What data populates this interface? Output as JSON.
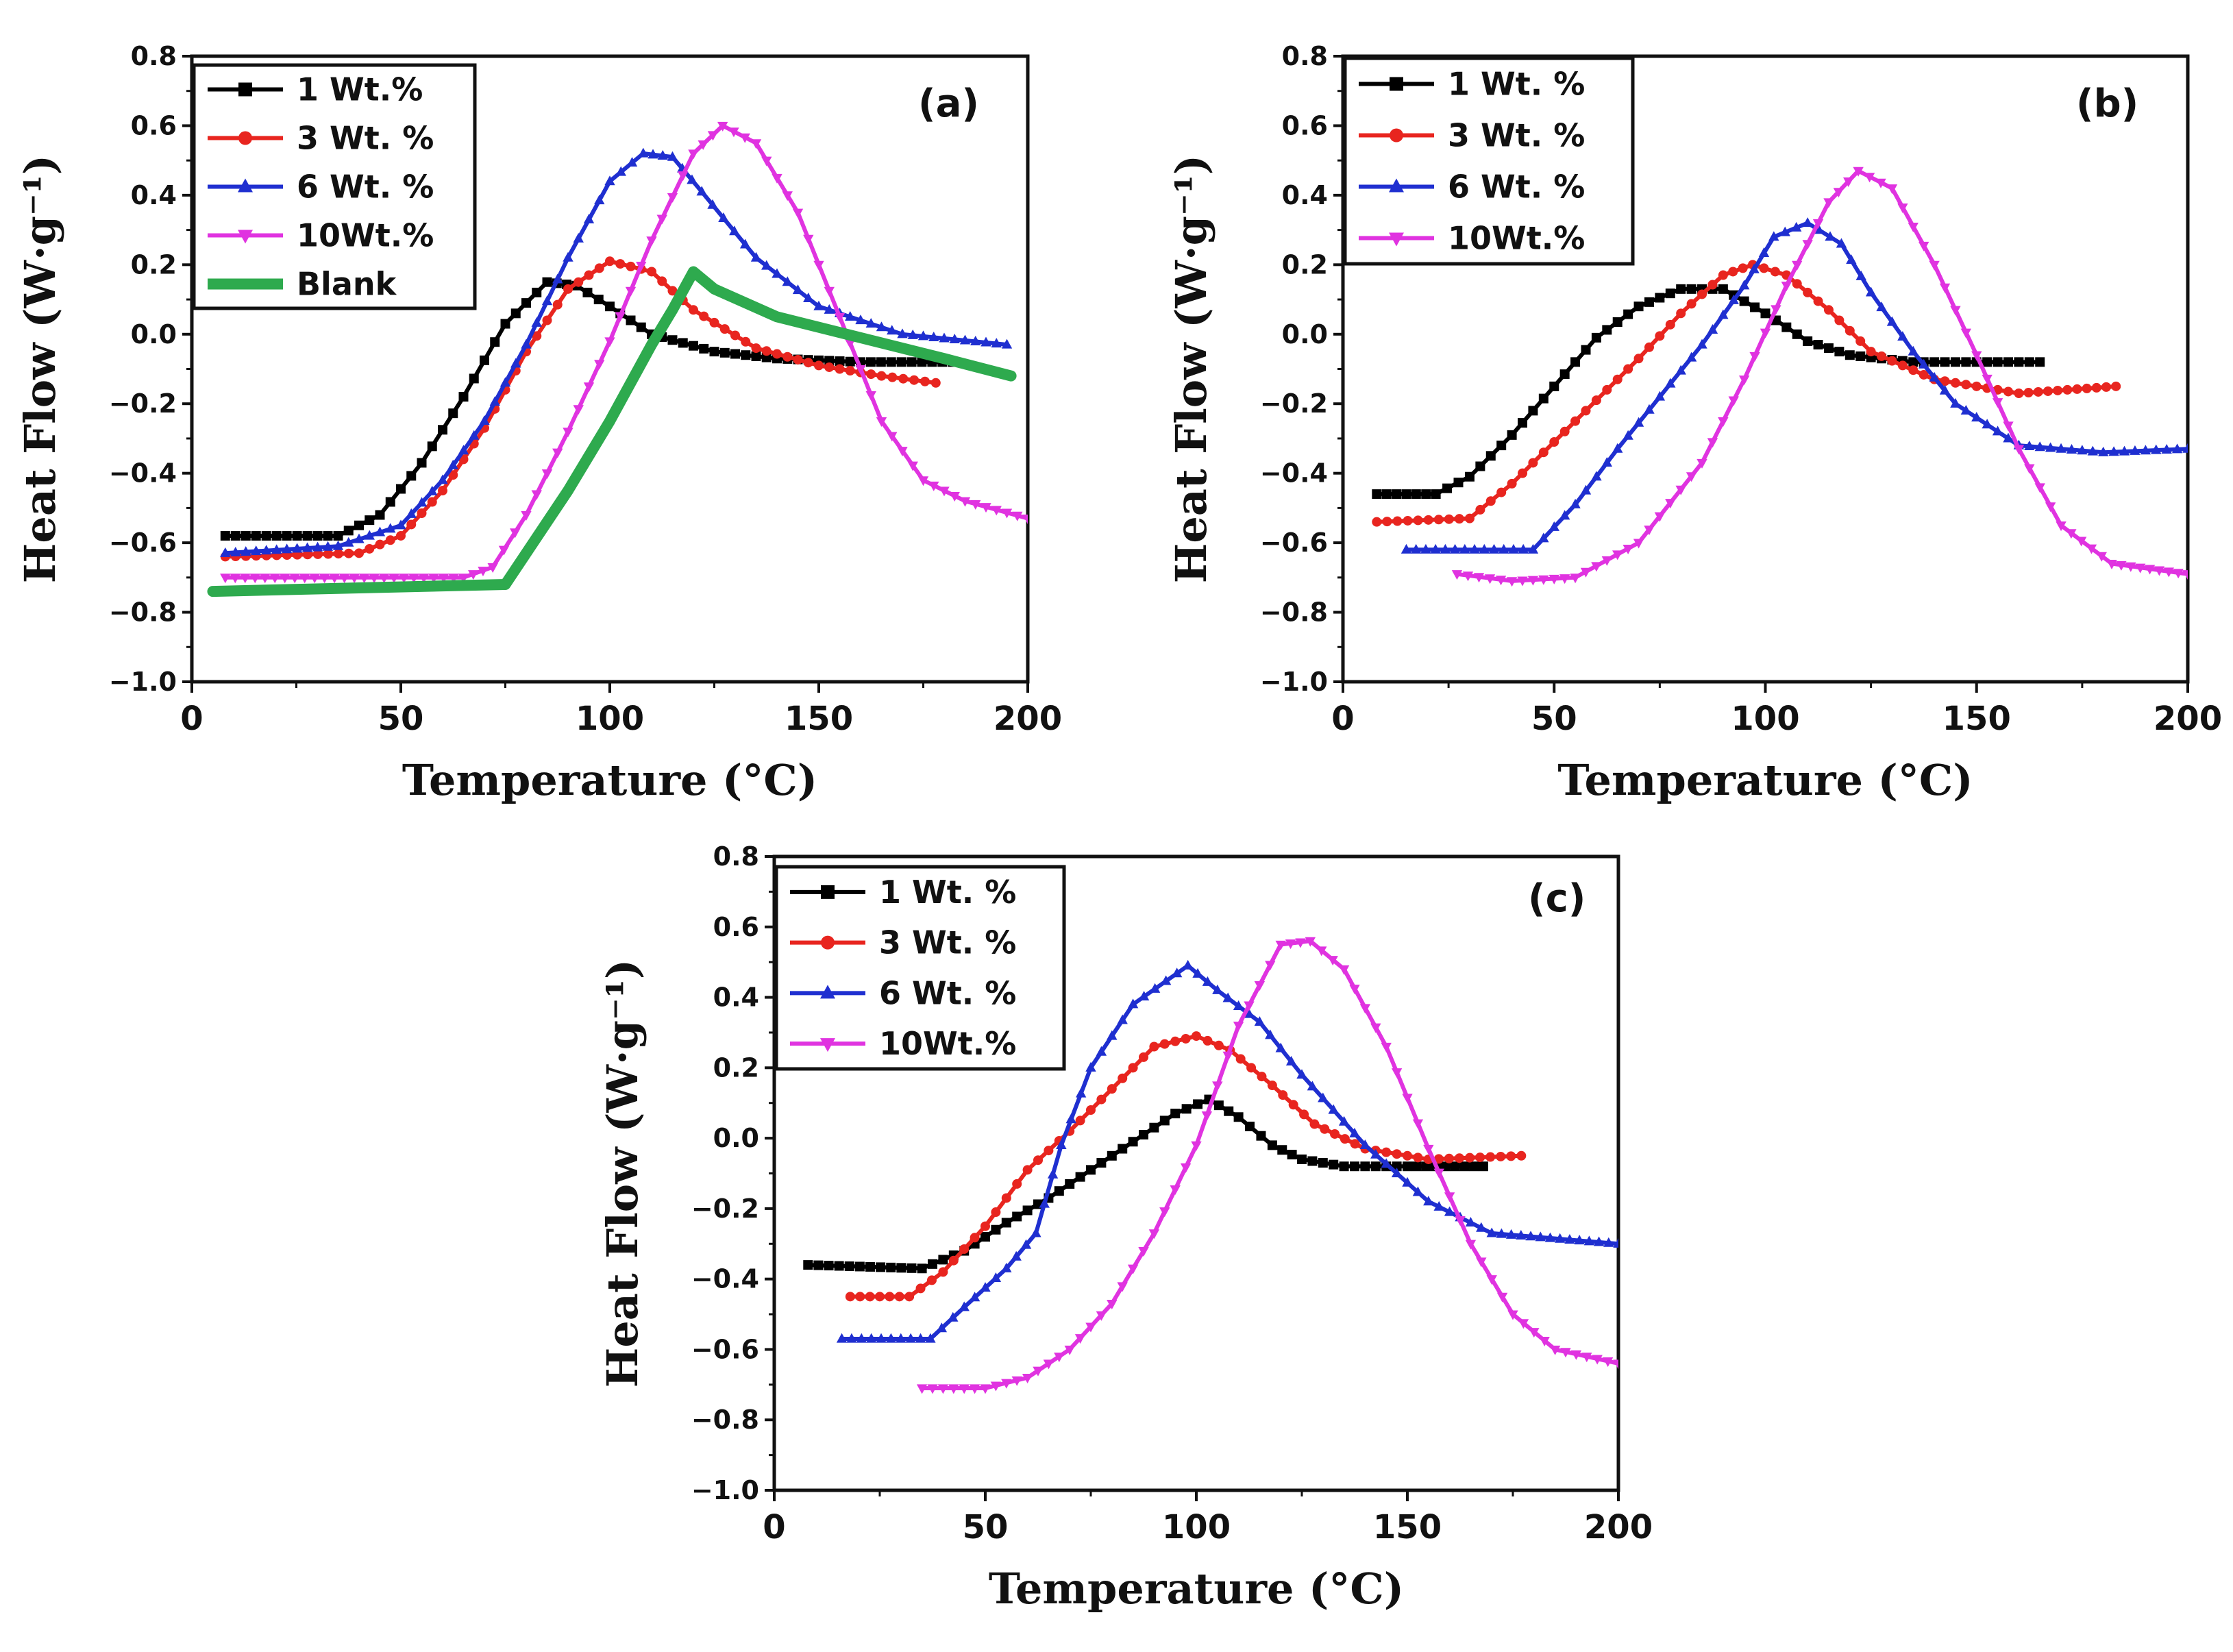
{
  "chart_data": [
    {
      "panel": "a",
      "type": "line",
      "title": "(a)",
      "xlabel": "Temperature (°C)",
      "ylabel": "Heat Flow (W·g⁻¹)",
      "xlim": [
        0,
        200
      ],
      "ylim": [
        -1.0,
        0.8
      ],
      "xticks": [
        "0",
        "50",
        "100",
        "150",
        "200"
      ],
      "yticks": [
        "0.8",
        "0.6",
        "0.4",
        "0.2",
        "0.0",
        "-0.2",
        "-0.4",
        "-0.6",
        "-0.8",
        "-1.0"
      ],
      "legend_position": "top-left",
      "series": [
        {
          "name": "1 Wt.%",
          "color": "#000000",
          "marker": "square",
          "x": [
            8,
            35,
            45,
            55,
            65,
            75,
            85,
            92,
            100,
            110,
            125,
            140,
            160,
            182
          ],
          "y": [
            -0.58,
            -0.58,
            -0.52,
            -0.37,
            -0.18,
            0.03,
            0.15,
            0.14,
            0.08,
            0.0,
            -0.05,
            -0.07,
            -0.08,
            -0.08
          ]
        },
        {
          "name": "3  Wt. %",
          "color": "#e8251f",
          "marker": "circle",
          "x": [
            8,
            40,
            50,
            60,
            70,
            80,
            90,
            100,
            110,
            120,
            135,
            150,
            165,
            178
          ],
          "y": [
            -0.64,
            -0.63,
            -0.58,
            -0.45,
            -0.27,
            -0.05,
            0.13,
            0.21,
            0.18,
            0.07,
            -0.04,
            -0.09,
            -0.12,
            -0.14
          ]
        },
        {
          "name": "6 Wt. %",
          "color": "#1f2fd0",
          "marker": "triangle-up",
          "x": [
            8,
            35,
            50,
            60,
            70,
            80,
            90,
            100,
            108,
            115,
            122,
            135,
            150,
            170,
            195
          ],
          "y": [
            -0.63,
            -0.61,
            -0.55,
            -0.42,
            -0.25,
            -0.03,
            0.22,
            0.44,
            0.52,
            0.51,
            0.41,
            0.22,
            0.08,
            0.0,
            -0.03
          ]
        },
        {
          "name": "10Wt.%",
          "color": "#e033e0",
          "marker": "triangle-down",
          "x": [
            8,
            65,
            72,
            80,
            90,
            100,
            110,
            120,
            127,
            135,
            145,
            155,
            165,
            175,
            185,
            200
          ],
          "y": [
            -0.7,
            -0.7,
            -0.67,
            -0.52,
            -0.28,
            -0.02,
            0.27,
            0.52,
            0.6,
            0.55,
            0.35,
            0.05,
            -0.25,
            -0.42,
            -0.48,
            -0.53
          ]
        },
        {
          "name": "Blank",
          "color": "#2eaa4e",
          "marker": "none",
          "x": [
            5,
            40,
            75,
            90,
            100,
            110,
            115,
            120,
            125,
            140,
            160,
            180,
            196
          ],
          "y": [
            -0.74,
            -0.73,
            -0.72,
            -0.45,
            -0.25,
            -0.03,
            0.07,
            0.18,
            0.13,
            0.05,
            -0.01,
            -0.07,
            -0.12
          ]
        }
      ]
    },
    {
      "panel": "b",
      "type": "line",
      "title": "(b)",
      "xlabel": "Temperature (°C)",
      "ylabel": "Heat Flow (W·g⁻¹)",
      "xlim": [
        0,
        200
      ],
      "ylim": [
        -1.0,
        0.8
      ],
      "xticks": [
        "0",
        "50",
        "100",
        "150",
        "200"
      ],
      "yticks": [
        "0.8",
        "0.6",
        "0.4",
        "0.2",
        "0.0",
        "-0.2",
        "-0.4",
        "-0.6",
        "-0.8",
        "-1.0"
      ],
      "legend_position": "top-left",
      "series": [
        {
          "name": "1 Wt. %",
          "color": "#000000",
          "marker": "square",
          "x": [
            8,
            22,
            30,
            40,
            50,
            60,
            70,
            80,
            90,
            100,
            110,
            120,
            135,
            150,
            165
          ],
          "y": [
            -0.46,
            -0.46,
            -0.41,
            -0.29,
            -0.15,
            -0.01,
            0.08,
            0.13,
            0.13,
            0.06,
            -0.02,
            -0.06,
            -0.08,
            -0.08,
            -0.08
          ]
        },
        {
          "name": "3  Wt. %",
          "color": "#e8251f",
          "marker": "circle",
          "x": [
            8,
            30,
            40,
            50,
            60,
            70,
            80,
            90,
            97,
            105,
            115,
            125,
            140,
            160,
            183
          ],
          "y": [
            -0.54,
            -0.53,
            -0.43,
            -0.31,
            -0.19,
            -0.07,
            0.06,
            0.17,
            0.2,
            0.17,
            0.07,
            -0.05,
            -0.13,
            -0.17,
            -0.15
          ]
        },
        {
          "name": "6 Wt. %",
          "color": "#1f2fd0",
          "marker": "triangle-up",
          "x": [
            15,
            45,
            55,
            65,
            75,
            85,
            95,
            102,
            110,
            118,
            125,
            135,
            145,
            160,
            180,
            200
          ],
          "y": [
            -0.62,
            -0.62,
            -0.49,
            -0.33,
            -0.18,
            -0.03,
            0.14,
            0.28,
            0.32,
            0.26,
            0.12,
            -0.05,
            -0.2,
            -0.32,
            -0.34,
            -0.33
          ]
        },
        {
          "name": "10Wt.%",
          "color": "#e033e0",
          "marker": "triangle-down",
          "x": [
            27,
            40,
            55,
            70,
            85,
            95,
            105,
            115,
            122,
            130,
            140,
            150,
            160,
            170,
            182,
            200
          ],
          "y": [
            -0.69,
            -0.71,
            -0.7,
            -0.6,
            -0.37,
            -0.13,
            0.14,
            0.38,
            0.47,
            0.42,
            0.2,
            -0.06,
            -0.33,
            -0.55,
            -0.66,
            -0.69
          ]
        }
      ]
    },
    {
      "panel": "c",
      "type": "line",
      "title": "(c)",
      "xlabel": "Temperature (°C)",
      "ylabel": "Heat Flow (W·g⁻¹)",
      "xlim": [
        0,
        200
      ],
      "ylim": [
        -1.0,
        0.8
      ],
      "xticks": [
        "0",
        "50",
        "100",
        "150",
        "200"
      ],
      "yticks": [
        "0.8",
        "0.6",
        "0.4",
        "0.2",
        "0.0",
        "-0.2",
        "-0.4",
        "-0.6",
        "-0.8",
        "-1.0"
      ],
      "legend_position": "top-left",
      "series": [
        {
          "name": "1 Wt. %",
          "color": "#000000",
          "marker": "square",
          "x": [
            8,
            35,
            45,
            55,
            65,
            75,
            85,
            95,
            103,
            110,
            118,
            125,
            135,
            150,
            168
          ],
          "y": [
            -0.36,
            -0.37,
            -0.32,
            -0.24,
            -0.17,
            -0.09,
            -0.01,
            0.07,
            0.11,
            0.06,
            -0.02,
            -0.06,
            -0.08,
            -0.08,
            -0.08
          ]
        },
        {
          "name": "3  Wt. %",
          "color": "#e8251f",
          "marker": "circle",
          "x": [
            18,
            32,
            40,
            50,
            60,
            70,
            80,
            90,
            100,
            108,
            118,
            128,
            140,
            155,
            177
          ],
          "y": [
            -0.45,
            -0.45,
            -0.38,
            -0.25,
            -0.09,
            0.02,
            0.14,
            0.26,
            0.29,
            0.25,
            0.15,
            0.04,
            -0.03,
            -0.06,
            -0.05
          ]
        },
        {
          "name": "6 Wt. %",
          "color": "#1f2fd0",
          "marker": "triangle-up",
          "x": [
            16,
            37,
            45,
            55,
            62,
            68,
            75,
            85,
            98,
            105,
            115,
            125,
            140,
            155,
            170,
            200
          ],
          "y": [
            -0.57,
            -0.57,
            -0.48,
            -0.37,
            -0.27,
            -0.02,
            0.2,
            0.38,
            0.49,
            0.42,
            0.33,
            0.18,
            -0.02,
            -0.18,
            -0.27,
            -0.3
          ]
        },
        {
          "name": "10Wt.%",
          "color": "#e033e0",
          "marker": "triangle-down",
          "x": [
            35,
            50,
            60,
            70,
            80,
            90,
            100,
            110,
            120,
            127,
            135,
            145,
            155,
            165,
            175,
            185,
            200
          ],
          "y": [
            -0.71,
            -0.71,
            -0.68,
            -0.6,
            -0.47,
            -0.27,
            -0.02,
            0.32,
            0.55,
            0.56,
            0.48,
            0.26,
            -0.03,
            -0.3,
            -0.5,
            -0.6,
            -0.64
          ]
        }
      ]
    }
  ]
}
